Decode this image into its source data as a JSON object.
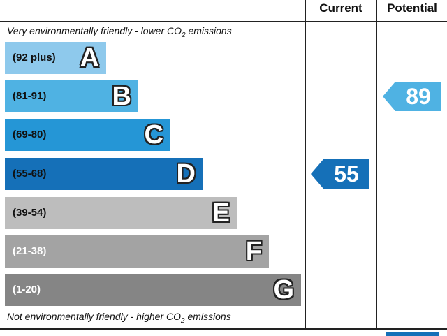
{
  "header": {
    "current_label": "Current",
    "potential_label": "Potential"
  },
  "captions": {
    "top": "Very environmentally friendly - lower C",
    "top_sub": "2",
    "top_co": "O",
    "top_end": " emissions",
    "bottom": "Not environmentally friendly - higher C",
    "bottom_co": "O",
    "bottom_sub": "2",
    "bottom_end": " emissions"
  },
  "chart_data": {
    "type": "bar",
    "categories": [
      "A",
      "B",
      "C",
      "D",
      "E",
      "F",
      "G"
    ],
    "bands": [
      {
        "letter": "A",
        "range": "(92 plus)",
        "color": "#8ec9ec",
        "text_color": "#111111"
      },
      {
        "letter": "B",
        "range": "(81-91)",
        "color": "#4fb2e3",
        "text_color": "#111111"
      },
      {
        "letter": "C",
        "range": "(69-80)",
        "color": "#2596d6",
        "text_color": "#111111"
      },
      {
        "letter": "D",
        "range": "(55-68)",
        "color": "#1570b8",
        "text_color": "#111111"
      },
      {
        "letter": "E",
        "range": "(39-54)",
        "color": "#bdbdbd",
        "text_color": "#111111"
      },
      {
        "letter": "F",
        "range": "(21-38)",
        "color": "#a3a3a3",
        "text_color": "#ffffff"
      },
      {
        "letter": "G",
        "range": "(1-20)",
        "color": "#858585",
        "text_color": "#ffffff"
      }
    ],
    "current": {
      "value": 55,
      "band": "D",
      "color": "#1570b8"
    },
    "potential": {
      "value": 89,
      "band": "B",
      "color": "#4fb2e3"
    }
  }
}
